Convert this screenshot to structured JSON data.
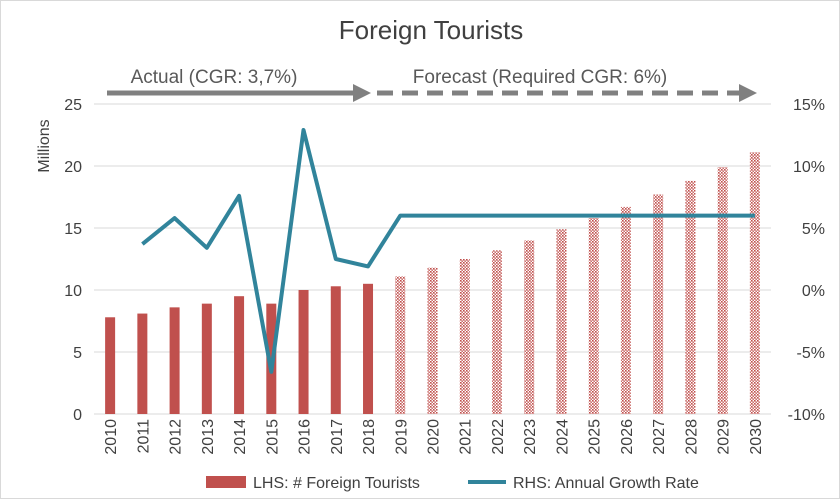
{
  "chart_data": {
    "type": "bar+line",
    "title": "Foreign Tourists",
    "ylabel_left": "Millions",
    "ylim_left": [
      0,
      25
    ],
    "yticks_left": [
      0,
      5,
      10,
      15,
      20,
      25
    ],
    "ylim_right": [
      -10,
      15
    ],
    "yticks_right": [
      "-10%",
      "-5%",
      "0%",
      "5%",
      "10%",
      "15%"
    ],
    "yticks_right_values": [
      -10,
      -5,
      0,
      5,
      10,
      15
    ],
    "categories": [
      "2010",
      "2011",
      "2012",
      "2013",
      "2014",
      "2015",
      "2016",
      "2017",
      "2018",
      "2019",
      "2020",
      "2021",
      "2022",
      "2023",
      "2024",
      "2025",
      "2026",
      "2027",
      "2028",
      "2029",
      "2030"
    ],
    "series": [
      {
        "name": "LHS: # Foreign Tourists",
        "type": "bar",
        "axis": "left",
        "values": [
          7.8,
          8.1,
          8.6,
          8.9,
          9.5,
          8.9,
          10.0,
          10.3,
          10.5,
          11.1,
          11.8,
          12.5,
          13.2,
          14.0,
          14.9,
          15.8,
          16.7,
          17.7,
          18.8,
          19.9,
          21.1
        ],
        "forecast_from_index": 9,
        "color": "#c0504d"
      },
      {
        "name": "RHS: Annual Growth Rate",
        "type": "line",
        "axis": "right",
        "values": [
          null,
          3.7,
          5.8,
          3.4,
          7.6,
          -6.6,
          12.9,
          2.5,
          1.9,
          6.0,
          6.0,
          6.0,
          6.0,
          6.0,
          6.0,
          6.0,
          6.0,
          6.0,
          6.0,
          6.0,
          6.0
        ],
        "color": "#31849b"
      }
    ],
    "annotations": {
      "actual_label": "Actual  (CGR: 3,7%)",
      "forecast_label": "Forecast (Required CGR: 6%)",
      "arrow_color": "#808080"
    },
    "grid": true,
    "legend_position": "bottom"
  }
}
